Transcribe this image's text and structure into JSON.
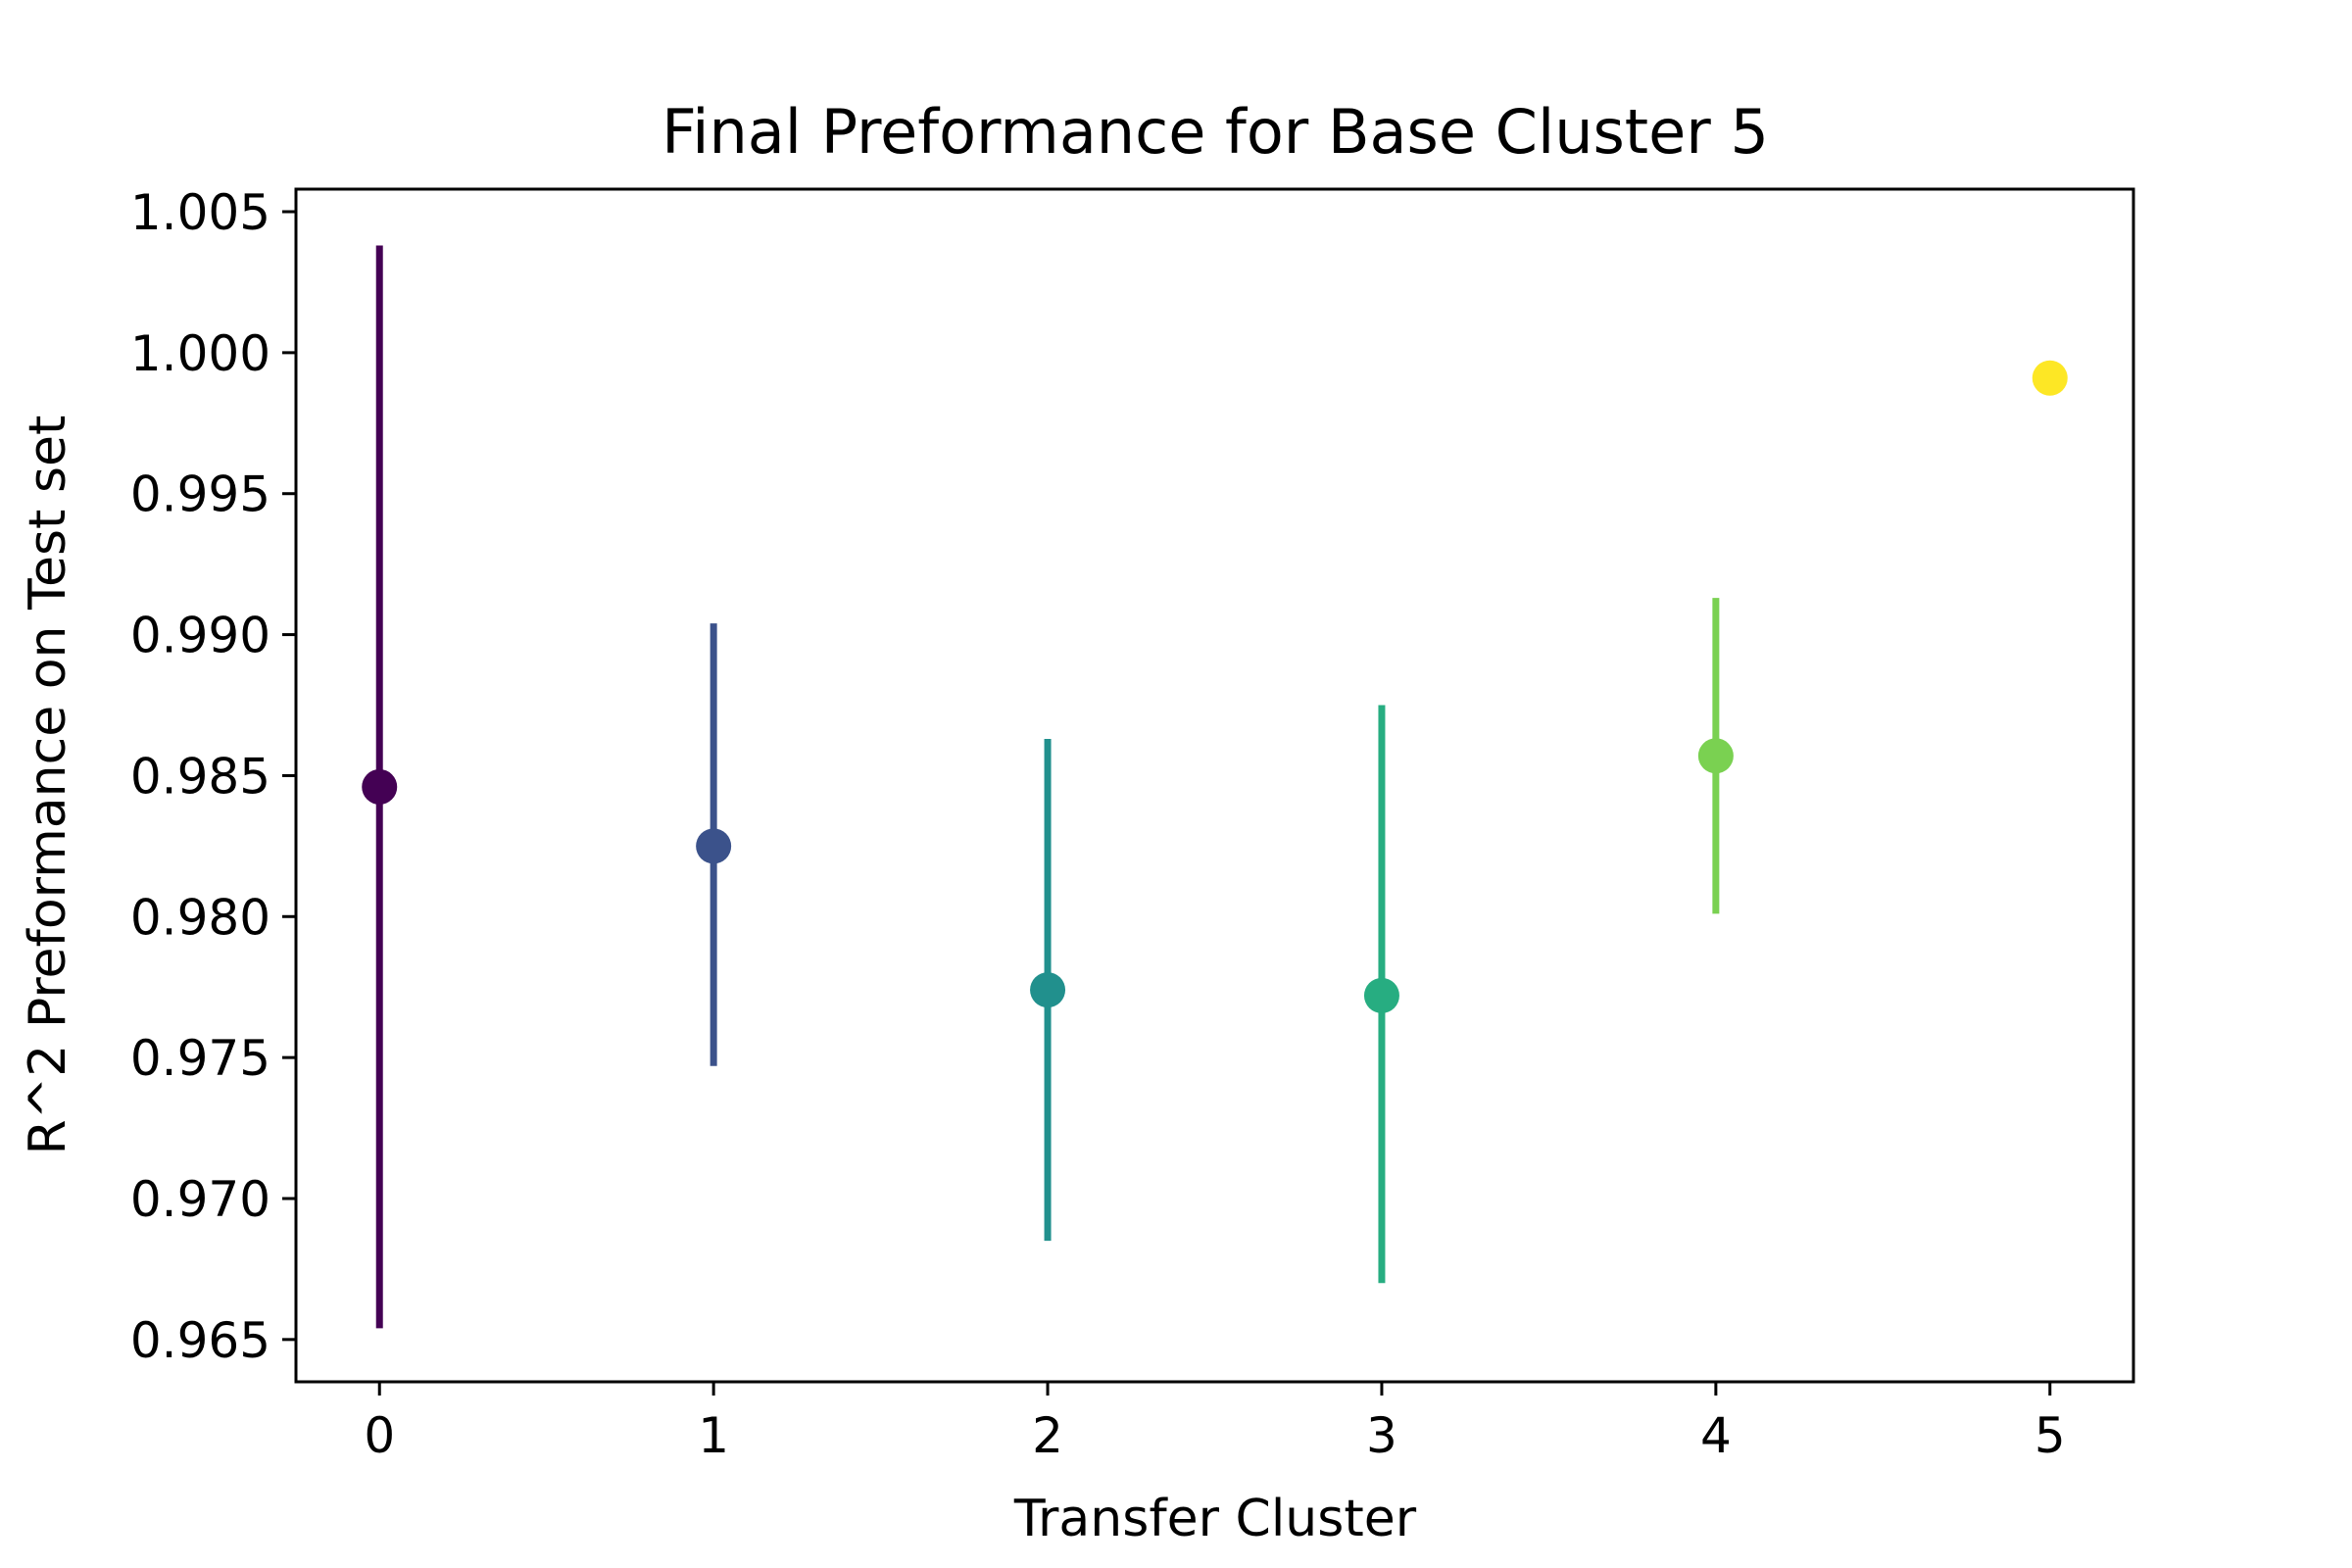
{
  "chart_data": {
    "type": "scatter",
    "title": "Final Preformance for Base Cluster 5",
    "xlabel": "Transfer Cluster",
    "ylabel": "R^2 Preformance on Test set",
    "xlim": [
      -0.25,
      5.25
    ],
    "ylim": [
      0.9635,
      1.0058
    ],
    "xticks": [
      "0",
      "1",
      "2",
      "3",
      "4",
      "5"
    ],
    "yticks": [
      "0.965",
      "0.970",
      "0.975",
      "0.980",
      "0.985",
      "0.990",
      "0.995",
      "1.000",
      "1.005"
    ],
    "grid": false,
    "points": [
      {
        "x": 0,
        "y": 0.9846,
        "ymin": 0.9654,
        "ymax": 1.0038,
        "color": "#440154"
      },
      {
        "x": 1,
        "y": 0.9825,
        "ymin": 0.9747,
        "ymax": 0.9904,
        "color": "#3b528b"
      },
      {
        "x": 2,
        "y": 0.9774,
        "ymin": 0.9685,
        "ymax": 0.9863,
        "color": "#21908d"
      },
      {
        "x": 3,
        "y": 0.9772,
        "ymin": 0.967,
        "ymax": 0.9875,
        "color": "#27ad81"
      },
      {
        "x": 4,
        "y": 0.9857,
        "ymin": 0.9801,
        "ymax": 0.9913,
        "color": "#7ad151"
      },
      {
        "x": 5,
        "y": 0.9991,
        "color": "#fde725"
      }
    ]
  }
}
